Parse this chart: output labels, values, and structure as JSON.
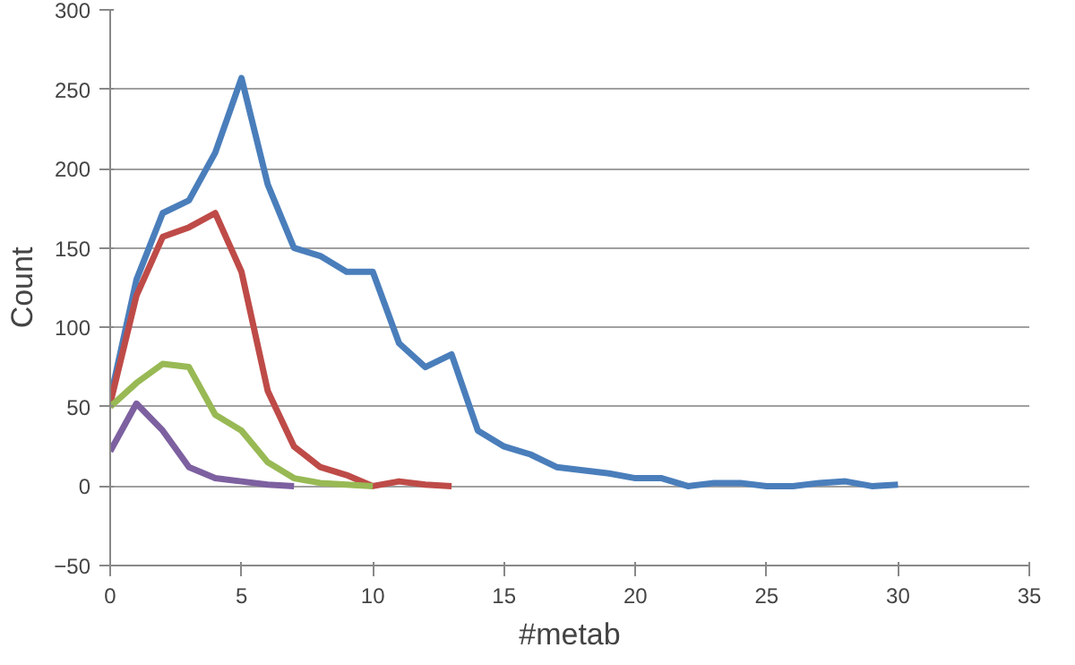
{
  "chart_data": {
    "type": "line",
    "xlabel": "#metab",
    "ylabel": "Count",
    "xlim": [
      0,
      35
    ],
    "ylim": [
      -50,
      300
    ],
    "xticks": [
      0,
      5,
      10,
      15,
      20,
      25,
      30,
      35
    ],
    "yticks": [
      -50,
      0,
      50,
      100,
      150,
      200,
      250,
      300
    ],
    "grid": "y",
    "line_style": "solid",
    "series": [
      {
        "color": "#4a7ebb",
        "x": [
          0,
          1,
          2,
          3,
          4,
          5,
          6,
          7,
          8,
          9,
          10,
          11,
          12,
          13,
          14,
          15,
          16,
          17,
          18,
          19,
          20,
          21,
          22,
          23,
          24,
          25,
          26,
          27,
          28,
          29,
          30
        ],
        "values": [
          55,
          130,
          172,
          180,
          210,
          257,
          190,
          150,
          145,
          135,
          135,
          90,
          75,
          83,
          35,
          25,
          20,
          12,
          10,
          8,
          5,
          5,
          0,
          2,
          2,
          0,
          0,
          2,
          3,
          0,
          1
        ]
      },
      {
        "color": "#be4b48",
        "x": [
          0,
          1,
          2,
          3,
          4,
          5,
          6,
          7,
          8,
          9,
          10,
          11,
          12,
          13
        ],
        "values": [
          52,
          120,
          157,
          163,
          172,
          135,
          60,
          25,
          12,
          7,
          0,
          3,
          1,
          0
        ]
      },
      {
        "color": "#98b954",
        "x": [
          0,
          1,
          2,
          3,
          4,
          5,
          6,
          7,
          8,
          9,
          10
        ],
        "values": [
          50,
          65,
          77,
          75,
          45,
          35,
          15,
          5,
          2,
          1,
          0
        ]
      },
      {
        "color": "#7d60a0",
        "x": [
          0,
          1,
          2,
          3,
          4,
          5,
          6,
          7
        ],
        "values": [
          22,
          52,
          35,
          12,
          5,
          3,
          1,
          0
        ]
      }
    ]
  }
}
